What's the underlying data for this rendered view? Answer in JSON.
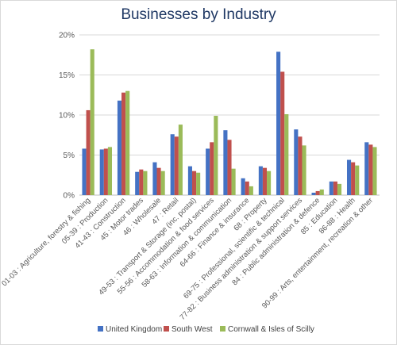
{
  "chart_data": {
    "type": "bar",
    "title": "Businesses by Industry",
    "xlabel": "",
    "ylabel": "",
    "ylim": [
      0,
      20
    ],
    "yticks": [
      "0%",
      "5%",
      "10%",
      "15%",
      "20%"
    ],
    "grid": true,
    "legend_position": "bottom",
    "categories": [
      "01-03 : Agriculture, forestry & fishing",
      "05-39 : Production",
      "41-43 : Construction",
      "45 : Motor trades",
      "46 : Wholesale",
      "47 : Retail",
      "49-53 : Transport & Storage (inc. postal)",
      "55-56 : Accommodation & food services",
      "58-63 : Information & communication",
      "64-66 : Finance & insurance",
      "68 : Property",
      "69-75 : Professional, scientific & technical",
      "77-82 : Business administration & support services",
      "84 : Public administration & defence",
      "85 : Education",
      "86-88 : Health",
      "90-99 : Arts, entertainment, recreation & other"
    ],
    "series": [
      {
        "name": "United Kingdom",
        "color": "#4472c4",
        "values": [
          5.8,
          5.7,
          11.8,
          2.9,
          4.1,
          7.6,
          3.6,
          5.8,
          8.1,
          2.1,
          3.6,
          17.9,
          8.2,
          0.3,
          1.7,
          4.4,
          6.6
        ]
      },
      {
        "name": "South West",
        "color": "#c0504d",
        "values": [
          10.6,
          5.8,
          12.8,
          3.2,
          3.4,
          7.3,
          3.0,
          6.6,
          6.9,
          1.7,
          3.4,
          15.4,
          7.3,
          0.5,
          1.7,
          4.1,
          6.3
        ]
      },
      {
        "name": "Cornwall & Isles of Scilly",
        "color": "#9bbb59",
        "values": [
          18.2,
          6.0,
          13.0,
          3.0,
          3.0,
          8.8,
          2.8,
          9.9,
          3.3,
          1.1,
          3.0,
          10.1,
          6.2,
          0.7,
          1.4,
          3.7,
          6.0
        ]
      }
    ]
  }
}
